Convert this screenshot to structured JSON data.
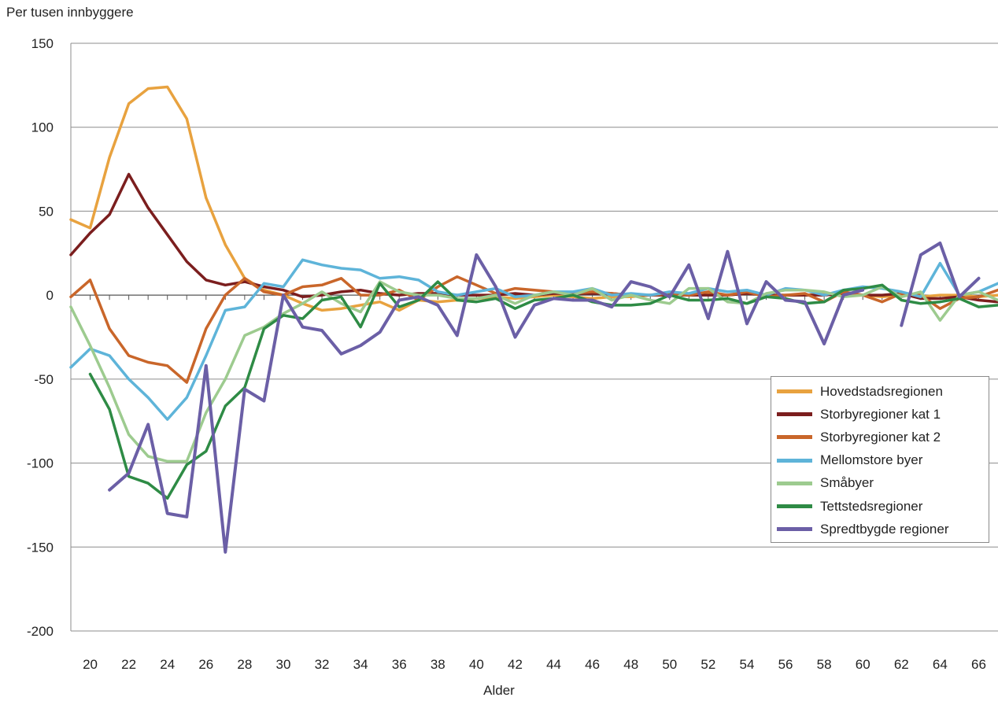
{
  "chart_data": {
    "type": "line",
    "title": "",
    "ylabel": "Per tusen innbyggere",
    "xlabel": "Alder",
    "ylim": [
      -200,
      150
    ],
    "yticks": [
      150,
      100,
      50,
      0,
      -50,
      -100,
      -150,
      -200
    ],
    "xlim": [
      19,
      67
    ],
    "xticks": [
      20,
      22,
      24,
      26,
      28,
      30,
      32,
      34,
      36,
      38,
      40,
      42,
      44,
      46,
      48,
      50,
      52,
      54,
      56,
      58,
      60,
      62,
      64,
      66
    ],
    "grid": "horizontal",
    "legend_position": "lower-right",
    "x": [
      19,
      20,
      21,
      22,
      23,
      24,
      25,
      26,
      27,
      28,
      29,
      30,
      31,
      32,
      33,
      34,
      35,
      36,
      37,
      38,
      39,
      40,
      41,
      42,
      43,
      44,
      45,
      46,
      47,
      48,
      49,
      50,
      51,
      52,
      53,
      54,
      55,
      56,
      57,
      58,
      59,
      60,
      61,
      62,
      63,
      64,
      65,
      66,
      67
    ],
    "series": [
      {
        "name": "Hovedstadsregionen",
        "color": "#E8A23F",
        "values": [
          45,
          40,
          82,
          114,
          123,
          124,
          105,
          58,
          30,
          10,
          3,
          0,
          -5,
          -9,
          -8,
          -6,
          -4,
          -9,
          -3,
          -4,
          -3,
          -2,
          -1,
          -2,
          -1,
          0,
          -1,
          -2,
          -1,
          -1,
          0,
          1,
          0,
          1,
          0,
          1,
          0,
          0,
          0,
          1,
          0,
          0,
          -1,
          0,
          -1,
          0,
          0,
          -1,
          0
        ]
      },
      {
        "name": "Storbyregioner kat 1",
        "color": "#7B1E1E",
        "values": [
          24,
          37,
          48,
          72,
          52,
          36,
          20,
          9,
          6,
          8,
          5,
          3,
          -1,
          0,
          2,
          3,
          1,
          0,
          1,
          1,
          0,
          0,
          0,
          1,
          0,
          1,
          1,
          1,
          1,
          0,
          0,
          0,
          0,
          0,
          0,
          1,
          0,
          0,
          0,
          0,
          1,
          0,
          0,
          1,
          -2,
          -2,
          -1,
          -3,
          -4
        ]
      },
      {
        "name": "Storbyregioner kat 2",
        "color": "#C9662A",
        "values": [
          -1,
          9,
          -20,
          -36,
          -40,
          -42,
          -52,
          -20,
          0,
          10,
          2,
          0,
          5,
          6,
          10,
          0,
          0,
          3,
          -3,
          5,
          11,
          6,
          1,
          4,
          3,
          2,
          1,
          2,
          1,
          0,
          0,
          1,
          0,
          2,
          0,
          2,
          -1,
          0,
          1,
          -4,
          2,
          0,
          -4,
          1,
          0,
          -8,
          -2,
          -1,
          3
        ]
      },
      {
        "name": "Mellomstore byer",
        "color": "#5EB4D9",
        "values": [
          -43,
          -32,
          -36,
          -50,
          -61,
          -74,
          -61,
          -36,
          -9,
          -7,
          7,
          5,
          21,
          18,
          16,
          15,
          10,
          11,
          9,
          2,
          0,
          2,
          4,
          -1,
          0,
          2,
          2,
          4,
          0,
          1,
          0,
          2,
          1,
          4,
          2,
          3,
          0,
          4,
          3,
          0,
          3,
          5,
          4,
          2,
          -1,
          19,
          0,
          2,
          7
        ]
      },
      {
        "name": "Småbyer",
        "color": "#9DCB8F",
        "values": [
          -7,
          -30,
          -55,
          -83,
          -96,
          -99,
          -99,
          -70,
          -50,
          -24,
          -19,
          -11,
          -5,
          2,
          -5,
          -10,
          8,
          2,
          0,
          0,
          -2,
          -2,
          0,
          -5,
          0,
          2,
          0,
          4,
          -3,
          0,
          -3,
          -5,
          4,
          4,
          -4,
          -5,
          1,
          3,
          3,
          2,
          -1,
          0,
          5,
          -1,
          2,
          -15,
          0,
          2,
          -3
        ]
      },
      {
        "name": "Tettstedsregioner",
        "color": "#2E8B45",
        "values": [
          null,
          -47,
          -68,
          -108,
          -112,
          -121,
          -101,
          -93,
          -66,
          -55,
          -20,
          -12,
          -14,
          -3,
          -1,
          -19,
          7,
          -7,
          -3,
          8,
          -3,
          -4,
          -2,
          -8,
          -3,
          -2,
          0,
          -4,
          -6,
          -6,
          -5,
          0,
          -3,
          -3,
          -2,
          -5,
          -1,
          -2,
          -5,
          -4,
          3,
          4,
          6,
          -3,
          -5,
          -4,
          -2,
          -7,
          -6
        ]
      },
      {
        "name": "Spredtbygde regioner",
        "color": "#6B5FA6",
        "values": [
          null,
          null,
          -116,
          -106,
          -77,
          -130,
          -132,
          -42,
          -153,
          -56,
          -63,
          0,
          -19,
          -21,
          -35,
          -30,
          -22,
          -3,
          -1,
          -6,
          -24,
          24,
          5,
          -25,
          -6,
          -2,
          -3,
          -3,
          -7,
          8,
          5,
          -1,
          18,
          -14,
          26,
          -17,
          8,
          -3,
          -4,
          -29,
          0,
          3,
          null,
          -18,
          24,
          31,
          -1,
          10,
          null
        ]
      }
    ]
  }
}
